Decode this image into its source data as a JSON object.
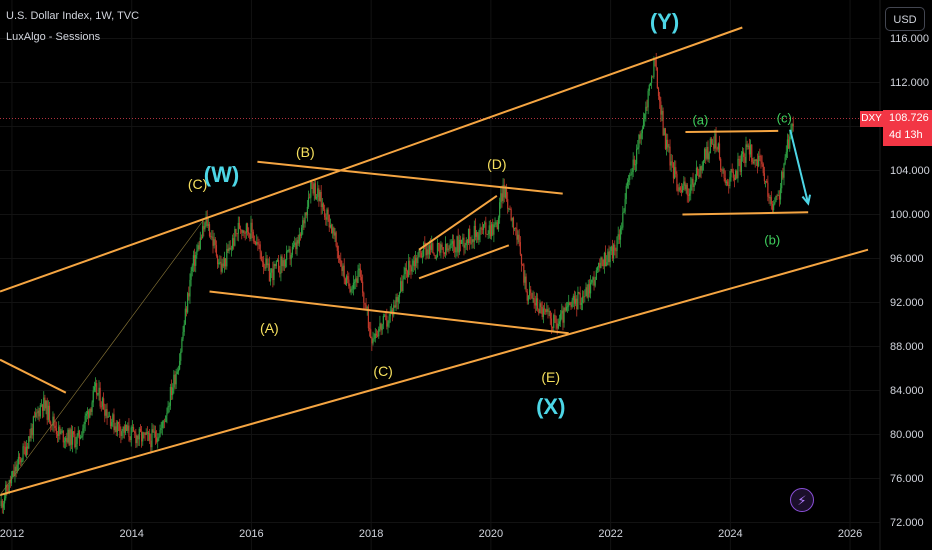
{
  "header": {
    "title": "U.S. Dollar Index, 1W, TVC",
    "indicator": "LuxAlgo - Sessions",
    "currency": "USD"
  },
  "price_axis": {
    "symbol": "DXY",
    "last_price": "108.726",
    "countdown": "4d 13h"
  },
  "chart_data": {
    "type": "candlestick",
    "x_ticks": [
      "2012",
      "2014",
      "2016",
      "2018",
      "2020",
      "2022",
      "2024",
      "2026"
    ],
    "y_ticks": [
      "116.000",
      "112.000",
      "108.000",
      "104.000",
      "100.000",
      "96.000",
      "92.000",
      "88.000",
      "84.000",
      "80.000",
      "76.000",
      "72.000"
    ],
    "xlim": [
      2011.8,
      2026.5
    ],
    "ylim": [
      69.5,
      119.5
    ],
    "last_price": 108.726,
    "price_path": [
      [
        2011.8,
        73.5
      ],
      [
        2012.2,
        78.5
      ],
      [
        2012.5,
        83.0
      ],
      [
        2012.8,
        80.0
      ],
      [
        2013.1,
        79.5
      ],
      [
        2013.4,
        84.0
      ],
      [
        2013.7,
        81.0
      ],
      [
        2014.0,
        80.0
      ],
      [
        2014.3,
        79.5
      ],
      [
        2014.5,
        80.5
      ],
      [
        2014.8,
        87.0
      ],
      [
        2015.0,
        95.0
      ],
      [
        2015.25,
        99.5
      ],
      [
        2015.5,
        95.0
      ],
      [
        2015.8,
        99.0
      ],
      [
        2016.0,
        98.5
      ],
      [
        2016.3,
        94.5
      ],
      [
        2016.6,
        96.0
      ],
      [
        2016.8,
        97.5
      ],
      [
        2017.0,
        103.0
      ],
      [
        2017.3,
        99.5
      ],
      [
        2017.6,
        93.5
      ],
      [
        2017.8,
        94.5
      ],
      [
        2018.0,
        89.0
      ],
      [
        2018.3,
        90.5
      ],
      [
        2018.6,
        95.0
      ],
      [
        2018.9,
        97.0
      ],
      [
        2019.2,
        96.5
      ],
      [
        2019.5,
        97.5
      ],
      [
        2019.8,
        98.5
      ],
      [
        2020.1,
        99.0
      ],
      [
        2020.2,
        102.5
      ],
      [
        2020.4,
        99.0
      ],
      [
        2020.6,
        93.0
      ],
      [
        2020.9,
        91.0
      ],
      [
        2021.1,
        90.0
      ],
      [
        2021.3,
        91.5
      ],
      [
        2021.6,
        93.0
      ],
      [
        2021.9,
        96.0
      ],
      [
        2022.1,
        97.0
      ],
      [
        2022.3,
        103.0
      ],
      [
        2022.5,
        107.0
      ],
      [
        2022.73,
        114.0
      ],
      [
        2022.9,
        107.0
      ],
      [
        2023.1,
        103.0
      ],
      [
        2023.3,
        102.0
      ],
      [
        2023.6,
        105.5
      ],
      [
        2023.75,
        107.0
      ],
      [
        2023.9,
        103.0
      ],
      [
        2024.1,
        104.0
      ],
      [
        2024.3,
        106.0
      ],
      [
        2024.5,
        104.5
      ],
      [
        2024.7,
        100.5
      ],
      [
        2024.8,
        101.5
      ],
      [
        2024.95,
        106.0
      ],
      [
        2025.05,
        108.7
      ]
    ],
    "trendlines": [
      {
        "from": [
          2011.8,
          93.0
        ],
        "to": [
          2024.2,
          117.0
        ]
      },
      {
        "from": [
          2011.8,
          74.5
        ],
        "to": [
          2026.3,
          96.8
        ]
      },
      {
        "from": [
          2011.8,
          86.8
        ],
        "to": [
          2012.9,
          83.8
        ]
      },
      {
        "from": [
          2016.1,
          104.8
        ],
        "to": [
          2021.2,
          101.9
        ]
      },
      {
        "from": [
          2015.3,
          93.0
        ],
        "to": [
          2021.3,
          89.2
        ]
      },
      {
        "from": [
          2018.8,
          96.8
        ],
        "to": [
          2020.1,
          101.7
        ]
      },
      {
        "from": [
          2018.8,
          94.2
        ],
        "to": [
          2020.3,
          97.2
        ]
      },
      {
        "from": [
          2023.25,
          107.5
        ],
        "to": [
          2024.8,
          107.6
        ]
      },
      {
        "from": [
          2023.2,
          100.0
        ],
        "to": [
          2025.3,
          100.2
        ]
      }
    ],
    "projection": {
      "from": [
        2025.0,
        107.7
      ],
      "to": [
        2025.3,
        101.0
      ]
    },
    "annotations": [
      {
        "text": "(Y)",
        "x": 2022.9,
        "y": 117.5,
        "style": "cyan"
      },
      {
        "text": "(C)",
        "x": 2015.1,
        "y": 102.8,
        "style": "yellow"
      },
      {
        "text": "(W)",
        "x": 2015.5,
        "y": 103.6,
        "style": "cyan"
      },
      {
        "text": "(B)",
        "x": 2016.9,
        "y": 105.7,
        "style": "yellow"
      },
      {
        "text": "(D)",
        "x": 2020.1,
        "y": 104.6,
        "style": "yellow"
      },
      {
        "text": "(A)",
        "x": 2016.3,
        "y": 89.7,
        "style": "yellow"
      },
      {
        "text": "(C)",
        "x": 2018.2,
        "y": 85.8,
        "style": "yellow"
      },
      {
        "text": "(E)",
        "x": 2021.0,
        "y": 85.2,
        "style": "yellow"
      },
      {
        "text": "(X)",
        "x": 2021.0,
        "y": 82.5,
        "style": "cyan"
      },
      {
        "text": "(a)",
        "x": 2023.5,
        "y": 108.6,
        "style": "green"
      },
      {
        "text": "(c)",
        "x": 2024.9,
        "y": 108.8,
        "style": "green"
      },
      {
        "text": "(b)",
        "x": 2024.7,
        "y": 97.7,
        "style": "green"
      }
    ]
  }
}
